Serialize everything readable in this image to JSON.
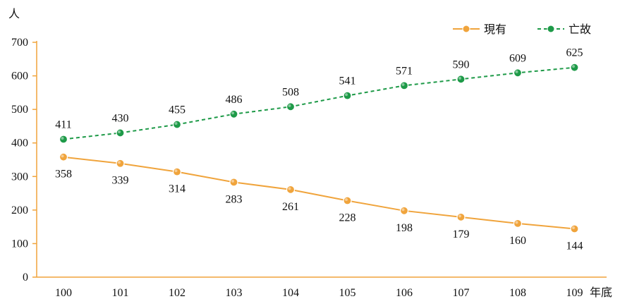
{
  "chart_data": {
    "type": "line",
    "categories": [
      "100",
      "101",
      "102",
      "103",
      "104",
      "105",
      "106",
      "107",
      "108",
      "109"
    ],
    "series": [
      {
        "name": "現有",
        "values": [
          358,
          339,
          314,
          283,
          261,
          228,
          198,
          179,
          160,
          144
        ],
        "color": "#f0a43c",
        "line_style": "solid"
      },
      {
        "name": "亡故",
        "values": [
          411,
          430,
          455,
          486,
          508,
          541,
          571,
          590,
          609,
          625
        ],
        "color": "#1e9a48",
        "line_style": "dashed"
      }
    ],
    "ylim": [
      0,
      700
    ],
    "yticks": [
      0,
      100,
      200,
      300,
      400,
      500,
      600,
      700
    ],
    "ylabel": "人",
    "xlabel": "年底",
    "axis_color": "#f0a43c",
    "legend_position": "top-right",
    "grid": false
  }
}
